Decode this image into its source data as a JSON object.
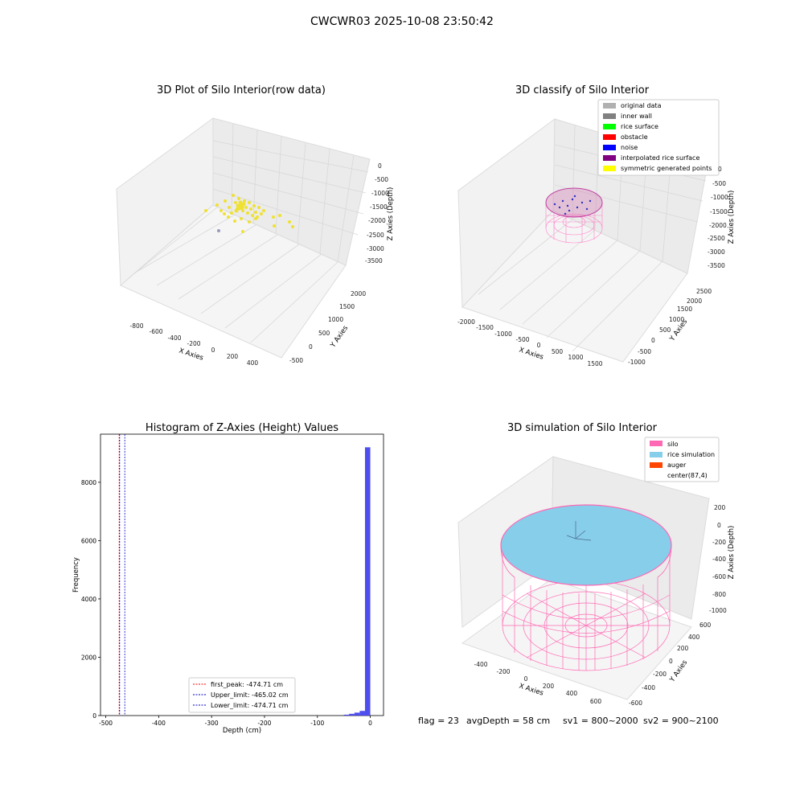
{
  "suptitle": "CWCWR03 2025-10-08 23:50:42",
  "panels": {
    "raw": {
      "title": "3D Plot of Silo Interior(row data)",
      "xlabel": "X Axies",
      "ylabel": "Y Axies",
      "zlabel": "Z Axies (Depth)",
      "xticks": [
        "-800",
        "-600",
        "-400",
        "-200",
        "0",
        "200",
        "400"
      ],
      "yticks": [
        "-500",
        "0",
        "500",
        "1000",
        "1500",
        "2000"
      ],
      "zticks": [
        "0",
        "-500",
        "-1000",
        "-1500",
        "-2000",
        "-2500",
        "-3000",
        "-3500"
      ]
    },
    "classify": {
      "title": "3D classify of Silo Interior",
      "xlabel": "X Axies",
      "ylabel": "Y Axies",
      "zlabel": "Z Axies (Depth)",
      "xticks": [
        "-2000",
        "-1500",
        "-1000",
        "-500",
        "0",
        "500",
        "1000",
        "1500"
      ],
      "yticks": [
        "-1000",
        "-500",
        "0",
        "500",
        "1000",
        "1500",
        "2000",
        "2500"
      ],
      "zticks": [
        "0",
        "-500",
        "-1000",
        "-1500",
        "-2000",
        "-2500",
        "-3000",
        "-3500"
      ],
      "legend": [
        {
          "label": "original data",
          "color": "#b0b0b0"
        },
        {
          "label": "inner wall",
          "color": "#808080"
        },
        {
          "label": "rice surface",
          "color": "#00ff00"
        },
        {
          "label": "obstacle",
          "color": "#ff0000"
        },
        {
          "label": "noise",
          "color": "#0000ff"
        },
        {
          "label": "interpolated rice surface",
          "color": "#800080"
        },
        {
          "label": "symmetric generated points",
          "color": "#ffff00"
        }
      ]
    },
    "simulation": {
      "title": "3D simulation of Silo Interior",
      "xlabel": "X Axies",
      "ylabel": "Y Axies",
      "zlabel": "Z Axies (Depth)",
      "xticks": [
        "-400",
        "-200",
        "0",
        "200",
        "400",
        "600"
      ],
      "yticks": [
        "-600",
        "-400",
        "-200",
        "0",
        "200",
        "400",
        "600"
      ],
      "zticks": [
        "200",
        "0",
        "-200",
        "-400",
        "-600",
        "-800",
        "-1000"
      ],
      "legend": [
        {
          "label": "silo",
          "color": "#ff69b4"
        },
        {
          "label": "rice simulation",
          "color": "#87ceeb"
        },
        {
          "label": "auger",
          "color": "#ff4500"
        },
        {
          "label": "center(87,4)",
          "color": ""
        }
      ]
    }
  },
  "chart_data": {
    "type": "bar",
    "title": "Histogram of Z-Axies (Height) Values",
    "xlabel": "Depth (cm)",
    "ylabel": "Frequency",
    "xlim": [
      -510,
      25
    ],
    "ylim": [
      0,
      9650
    ],
    "xticks": [
      -500,
      -400,
      -300,
      -200,
      -100,
      0
    ],
    "yticks": [
      0,
      2000,
      4000,
      6000,
      8000
    ],
    "bar_color": "#4444ee",
    "bins": [
      {
        "x0": -50,
        "x1": -40,
        "value": 30
      },
      {
        "x0": -40,
        "x1": -30,
        "value": 60
      },
      {
        "x0": -30,
        "x1": -20,
        "value": 100
      },
      {
        "x0": -20,
        "x1": -10,
        "value": 160
      },
      {
        "x0": -10,
        "x1": 0,
        "value": 9200
      }
    ],
    "lines": [
      {
        "label": "first_peak: -474.71 cm",
        "x": -474.71,
        "color": "#ff0000"
      },
      {
        "label": "Upper_limit: -465.02 cm",
        "x": -465.02,
        "color": "#0000cc"
      },
      {
        "label": "Lower_limit: -474.71 cm",
        "x": -474.71,
        "color": "#0000cc"
      }
    ]
  },
  "footer": {
    "flag": "flag = 23",
    "avg_depth": "avgDepth = 58 cm",
    "sv1": "sv1 = 800~2000",
    "sv2": "sv2 = 900~2100"
  }
}
